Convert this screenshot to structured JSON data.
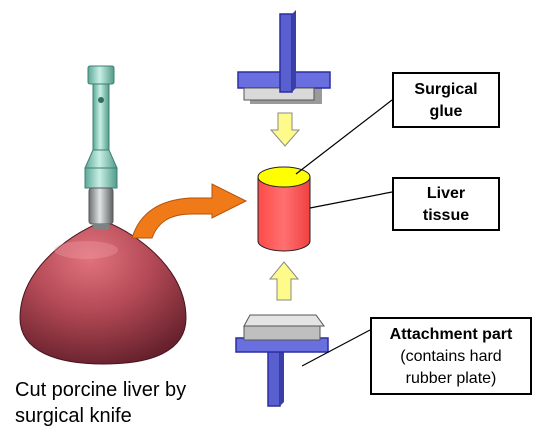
{
  "labels": {
    "surgical_glue": [
      "Surgical",
      "glue"
    ],
    "liver_tissue": [
      "Liver",
      "tissue"
    ],
    "attachment_part": {
      "title": "Attachment part",
      "detail": [
        "(contains hard",
        "rubber plate)"
      ]
    }
  },
  "caption": [
    "Cut porcine liver by",
    "surgical knife"
  ],
  "colors": {
    "probe_green": "#8fd1c0",
    "probe_gray": "#9aa0a0",
    "liver_dark": "#8a2a3a",
    "liver_light": "#e2737e",
    "curved_arrow": "#f07a18",
    "plate_blue": "#6a6fe0",
    "plate_gray": "#cfcfcf",
    "cylinder_red": "#ff5a5a",
    "cylinder_top": "#ffff00",
    "arrow_yellow": "#fffb8a"
  }
}
